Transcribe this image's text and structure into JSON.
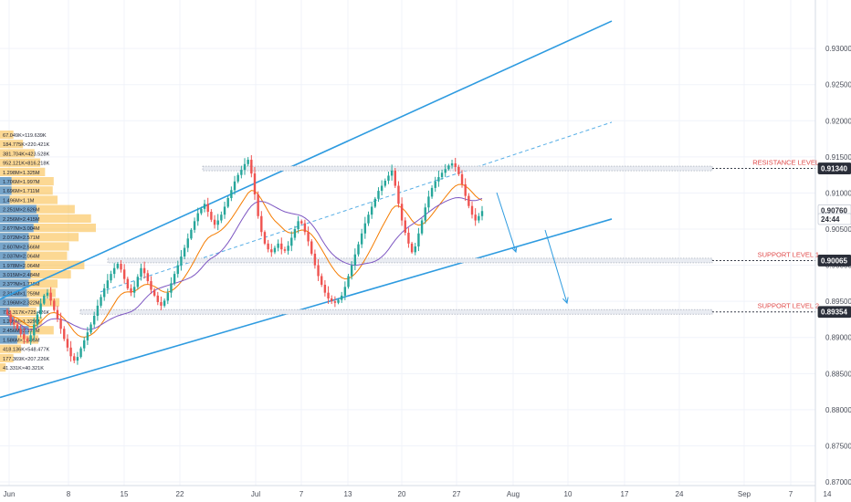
{
  "chart_data": {
    "type": "candlestick",
    "title": "",
    "x_ticks": [
      "Jun",
      "8",
      "15",
      "22",
      "Jul",
      "7",
      "13",
      "20",
      "27",
      "Aug",
      "10",
      "17",
      "24",
      "Sep",
      "7",
      "14"
    ],
    "y_ticks": [
      "0.93000",
      "0.92500",
      "0.92000",
      "0.91500",
      "0.91000",
      "0.90500",
      "0.90000",
      "0.89500",
      "0.89000",
      "0.88500",
      "0.88000",
      "0.87500",
      "0.87000"
    ],
    "ylim": [
      0.8695,
      0.9352
    ],
    "price_tags": [
      {
        "label": "0.91340",
        "value": 0.9134,
        "style": "dark"
      },
      {
        "label": "0.90760",
        "value": 0.9076,
        "style": "light"
      },
      {
        "label": "24:44",
        "value": 0.9064,
        "style": "light"
      },
      {
        "label": "0.90065",
        "value": 0.90065,
        "style": "dark"
      },
      {
        "label": "0.89354",
        "value": 0.89354,
        "style": "dark"
      }
    ],
    "levels": [
      {
        "name": "RESISTANCE LEVEL",
        "value": 0.9134,
        "color": "#e04b4b"
      },
      {
        "name": "SUPPORT LEVEL 1",
        "value": 0.90065,
        "color": "#e04b4b"
      },
      {
        "name": "SUPPORT LEVEL 2",
        "value": 0.89354,
        "color": "#e04b4b"
      }
    ],
    "channel": {
      "upper": [
        [
          0,
          0.8953
        ],
        [
          670,
          0.9338
        ]
      ],
      "lower": [
        [
          0,
          0.8817
        ],
        [
          670,
          0.9064
        ]
      ],
      "mid_dashed": [
        [
          110,
          0.8963
        ],
        [
          670,
          0.9198
        ]
      ]
    },
    "closes": [
      0.8932,
      0.8921,
      0.8918,
      0.8912,
      0.8905,
      0.8898,
      0.8895,
      0.8903,
      0.8918,
      0.8932,
      0.8947,
      0.8958,
      0.8962,
      0.8951,
      0.8938,
      0.8926,
      0.8912,
      0.8898,
      0.8886,
      0.8874,
      0.8868,
      0.8873,
      0.8885,
      0.8896,
      0.8907,
      0.8918,
      0.893,
      0.8944,
      0.8956,
      0.8968,
      0.8979,
      0.8988,
      0.8996,
      0.9002,
      0.8994,
      0.8981,
      0.8968,
      0.8962,
      0.897,
      0.8984,
      0.8996,
      0.8989,
      0.8978,
      0.8966,
      0.8958,
      0.8949,
      0.8944,
      0.8951,
      0.8962,
      0.8975,
      0.8988,
      0.9,
      0.9012,
      0.9024,
      0.9037,
      0.9049,
      0.9061,
      0.9072,
      0.9078,
      0.9085,
      0.9074,
      0.9063,
      0.9056,
      0.9062,
      0.907,
      0.9081,
      0.9093,
      0.9104,
      0.9116,
      0.9125,
      0.9132,
      0.914,
      0.9146,
      0.9127,
      0.9098,
      0.9068,
      0.9046,
      0.903,
      0.9022,
      0.9018,
      0.9024,
      0.903,
      0.9022,
      0.902,
      0.9027,
      0.9038,
      0.905,
      0.9061,
      0.9058,
      0.9046,
      0.9033,
      0.9016,
      0.9,
      0.8985,
      0.8973,
      0.8962,
      0.8954,
      0.895,
      0.8948,
      0.8952,
      0.8958,
      0.897,
      0.8985,
      0.9,
      0.9015,
      0.9029,
      0.9044,
      0.9058,
      0.907,
      0.9081,
      0.9092,
      0.9103,
      0.911,
      0.9117,
      0.9124,
      0.9131,
      0.911,
      0.9085,
      0.9062,
      0.9045,
      0.903,
      0.9018,
      0.9026,
      0.9044,
      0.9062,
      0.908,
      0.9095,
      0.9107,
      0.9116,
      0.9122,
      0.9128,
      0.9133,
      0.9138,
      0.9141,
      0.9136,
      0.9126,
      0.9112,
      0.9096,
      0.9082,
      0.907,
      0.9062,
      0.9068,
      0.9075
    ]
  },
  "volume_profile": [
    {
      "label": "67.049K×119.639K",
      "buy": 0.0,
      "sell": 0.14
    },
    {
      "label": "184.775K×220.421K",
      "buy": 0.0,
      "sell": 0.24
    },
    {
      "label": "381.704K×423.528K",
      "buy": 0.0,
      "sell": 0.36
    },
    {
      "label": "952.121K×816.218K",
      "buy": 0.0,
      "sell": 0.42
    },
    {
      "label": "1.298M×1.325M",
      "buy": 0.0,
      "sell": 0.47
    },
    {
      "label": "1.706M×1.997M",
      "buy": 0.12,
      "sell": 0.56
    },
    {
      "label": "1.696M×1.711M",
      "buy": 0.12,
      "sell": 0.55
    },
    {
      "label": "1.496M×1.1M",
      "buy": 0.1,
      "sell": 0.6
    },
    {
      "label": "2.251M×2.626M",
      "buy": 0.38,
      "sell": 0.78
    },
    {
      "label": "2.256M×2.415M",
      "buy": 0.4,
      "sell": 0.95
    },
    {
      "label": "2.6?7M×3.004M",
      "buy": 0.35,
      "sell": 1.0
    },
    {
      "label": "2.072M×2.571M",
      "buy": 0.3,
      "sell": 0.82
    },
    {
      "label": "2.607M×2.566M",
      "buy": 0.3,
      "sell": 0.72
    },
    {
      "label": "2.037M×2.064M",
      "buy": 0.28,
      "sell": 0.7
    },
    {
      "label": "1.978M×2.064M",
      "buy": 0.26,
      "sell": 0.88
    },
    {
      "label": "3.015M×2.484M",
      "buy": 0.32,
      "sell": 0.74
    },
    {
      "label": "2.3??M×1.719M",
      "buy": 0.3,
      "sell": 0.6
    },
    {
      "label": "2.314M×1.?59M",
      "buy": 0.28,
      "sell": 0.58
    },
    {
      "label": "2.196M×2.322M",
      "buy": 0.3,
      "sell": 0.62
    },
    {
      "label": "738.317K×725.426K",
      "buy": 0.1,
      "sell": 0.38
    },
    {
      "label": "1.295M×1.329M",
      "buy": 0.14,
      "sell": 0.44
    },
    {
      "label": "2.456M×2.129M",
      "buy": 0.3,
      "sell": 0.56
    },
    {
      "label": "1.586M×1.595M",
      "buy": 0.18,
      "sell": 0.4
    },
    {
      "label": "418.136K×548.477K",
      "buy": 0.0,
      "sell": 0.22
    },
    {
      "label": "177.369K×207.226K",
      "buy": 0.0,
      "sell": 0.14
    },
    {
      "label": "41.331K×40.321K",
      "buy": 0.0,
      "sell": 0.06
    }
  ],
  "colors": {
    "up": "#26a69a",
    "down": "#ef5350",
    "channel": "#2e9be0",
    "ema": "#f57c00",
    "sma": "#7e57c2",
    "vp_buy": "#3d8fe0",
    "vp_sell": "#f9b83a",
    "level_text": "#e04b4b",
    "grid": "#f0f3fa"
  }
}
